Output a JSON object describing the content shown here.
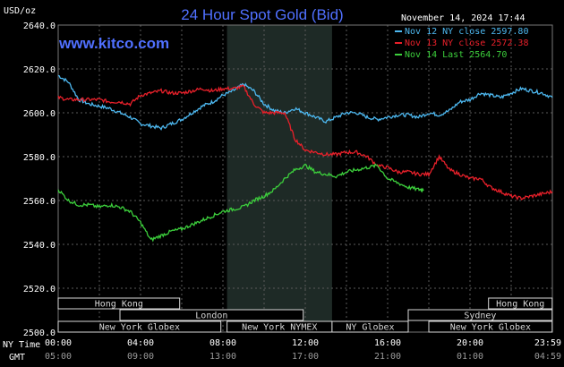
{
  "header": {
    "unit": "USD/oz",
    "title": "24 Hour Spot Gold (Bid)",
    "site": "www.kitco.com",
    "timestamp": "November 14, 2024 17:44"
  },
  "legend": [
    {
      "label": "Nov 12 NY close 2597.80",
      "color": "#4db8f0"
    },
    {
      "label": "Nov 13 NY close 2572.38",
      "color": "#e8202a"
    },
    {
      "label": "Nov 14 Last 2564.70",
      "color": "#3ccf3c"
    }
  ],
  "time_rows": {
    "ny_label": "NY Time",
    "gmt_label": "GMT",
    "ny_ticks": [
      "00:00",
      "04:00",
      "08:00",
      "12:00",
      "16:00",
      "20:00",
      "23:59"
    ],
    "gmt_ticks": [
      "05:00",
      "09:00",
      "13:00",
      "17:00",
      "21:00",
      "01:00",
      "04:59"
    ]
  },
  "sessions": [
    {
      "label": "Hong Kong",
      "row": 0,
      "start": 0,
      "end": 5.9
    },
    {
      "label": "Hong Kong",
      "row": 0,
      "start": 20.9,
      "end": 23.99
    },
    {
      "label": "London",
      "row": 1,
      "start": 3.0,
      "end": 11.9
    },
    {
      "label": "Sydney",
      "row": 1,
      "start": 17.0,
      "end": 23.99
    },
    {
      "label": "New York Globex",
      "row": 2,
      "start": 0,
      "end": 7.9
    },
    {
      "label": "New York NYMEX",
      "row": 2,
      "start": 8.2,
      "end": 13.3
    },
    {
      "label": "NY Globex",
      "row": 2,
      "start": 13.3,
      "end": 17.0
    },
    {
      "label": "New York Globex",
      "row": 2,
      "start": 18.0,
      "end": 23.99
    }
  ],
  "colors": {
    "background": "#000000",
    "grid": "#5a5a5a",
    "shade": "#1e2a26",
    "title": "#5070ff",
    "axis_text": "#ffffff",
    "session_box": "#d8d8d8",
    "session_border": "#c8a040"
  },
  "chart_data": {
    "type": "line",
    "ylabel": "USD/oz",
    "ylim": [
      2500,
      2640
    ],
    "y_ticks": [
      "2500.0",
      "2520.0",
      "2540.0",
      "2560.0",
      "2580.0",
      "2600.0",
      "2620.0",
      "2640.0"
    ],
    "xlim": [
      0,
      24
    ],
    "x_unit": "hours since 00:00 NY time",
    "shaded_range": [
      8.2,
      13.3
    ],
    "series": [
      {
        "name": "Nov 12 NY close",
        "close": 2597.8,
        "color": "#4db8f0",
        "x": [
          0,
          0.5,
          1.0,
          1.5,
          2.0,
          2.5,
          3.0,
          3.5,
          4.0,
          4.5,
          5.0,
          5.5,
          6.0,
          6.5,
          7.0,
          7.5,
          8.0,
          8.5,
          9.0,
          9.5,
          10.0,
          10.5,
          11.0,
          11.5,
          12.0,
          12.5,
          13.0,
          13.5,
          14.0,
          14.5,
          15.0,
          15.5,
          16.0,
          16.5,
          17.0,
          17.5,
          18.0,
          18.5,
          19.0,
          19.5,
          20.0,
          20.5,
          21.0,
          21.5,
          22.0,
          22.5,
          23.0,
          23.5,
          24.0
        ],
        "y": [
          2617,
          2614,
          2606,
          2604,
          2603,
          2602,
          2600,
          2598,
          2595,
          2594,
          2593,
          2595,
          2597,
          2600,
          2603,
          2605,
          2608,
          2610,
          2613,
          2610,
          2604,
          2601,
          2600,
          2602,
          2600,
          2598,
          2596,
          2598,
          2600,
          2600,
          2598,
          2597,
          2598,
          2599,
          2599,
          2598,
          2600,
          2599,
          2601,
          2605,
          2606,
          2609,
          2608,
          2607,
          2609,
          2611,
          2610,
          2609,
          2607
        ]
      },
      {
        "name": "Nov 13 NY close",
        "close": 2572.38,
        "color": "#e8202a",
        "x": [
          0,
          0.5,
          1.0,
          1.5,
          2.0,
          2.5,
          3.0,
          3.5,
          4.0,
          4.5,
          5.0,
          5.5,
          6.0,
          6.5,
          7.0,
          7.5,
          8.0,
          8.5,
          9.0,
          9.5,
          10.0,
          10.5,
          11.0,
          11.5,
          12.0,
          12.5,
          13.0,
          13.5,
          14.0,
          14.5,
          15.0,
          15.5,
          16.0,
          16.5,
          17.0,
          17.5,
          18.0,
          18.5,
          19.0,
          19.5,
          20.0,
          20.5,
          21.0,
          21.5,
          22.0,
          22.5,
          23.0,
          23.5,
          24.0
        ],
        "y": [
          2607,
          2606,
          2606,
          2606,
          2606,
          2605,
          2605,
          2604,
          2608,
          2609,
          2610,
          2609,
          2609,
          2610,
          2611,
          2610,
          2611,
          2611,
          2612,
          2604,
          2600,
          2600,
          2600,
          2588,
          2583,
          2582,
          2581,
          2581,
          2582,
          2582,
          2580,
          2576,
          2575,
          2573,
          2573,
          2572,
          2572,
          2580,
          2574,
          2572,
          2570,
          2570,
          2566,
          2564,
          2562,
          2561,
          2562,
          2563,
          2564
        ]
      },
      {
        "name": "Nov 14 Last",
        "close": 2564.7,
        "color": "#3ccf3c",
        "x": [
          0,
          0.5,
          1.0,
          1.5,
          2.0,
          2.5,
          3.0,
          3.5,
          4.0,
          4.5,
          5.0,
          5.5,
          6.0,
          6.5,
          7.0,
          7.5,
          8.0,
          8.5,
          9.0,
          9.5,
          10.0,
          10.5,
          11.0,
          11.5,
          12.0,
          12.5,
          13.0,
          13.5,
          14.0,
          14.5,
          15.0,
          15.5,
          16.0,
          16.5,
          17.0,
          17.5,
          17.75
        ],
        "y": [
          2565,
          2560,
          2558,
          2558,
          2557,
          2558,
          2557,
          2555,
          2550,
          2542,
          2544,
          2546,
          2547,
          2549,
          2551,
          2553,
          2555,
          2556,
          2557,
          2560,
          2562,
          2565,
          2570,
          2574,
          2576,
          2573,
          2572,
          2571,
          2573,
          2574,
          2575,
          2576,
          2570,
          2568,
          2566,
          2565,
          2565
        ]
      }
    ]
  }
}
